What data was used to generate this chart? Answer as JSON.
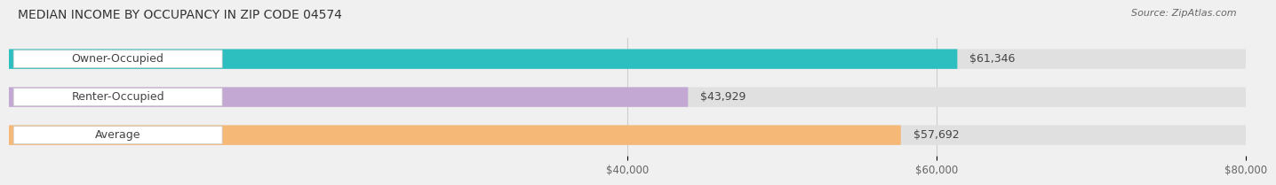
{
  "title": "MEDIAN INCOME BY OCCUPANCY IN ZIP CODE 04574",
  "source": "Source: ZipAtlas.com",
  "categories": [
    "Owner-Occupied",
    "Renter-Occupied",
    "Average"
  ],
  "values": [
    61346,
    43929,
    57692
  ],
  "bar_colors": [
    "#2dbfbf",
    "#c4a8d4",
    "#f5b877"
  ],
  "bar_labels": [
    "$61,346",
    "$43,929",
    "$57,692"
  ],
  "xmin": 0,
  "xmax": 80000,
  "xticks": [
    40000,
    60000,
    80000
  ],
  "xticklabels": [
    "$40,000",
    "$60,000",
    "$80,000"
  ],
  "background_color": "#f0f0f0",
  "bar_bg_color": "#e0e0e0",
  "title_fontsize": 10,
  "source_fontsize": 8,
  "label_fontsize": 9,
  "value_fontsize": 9,
  "tick_fontsize": 8.5
}
